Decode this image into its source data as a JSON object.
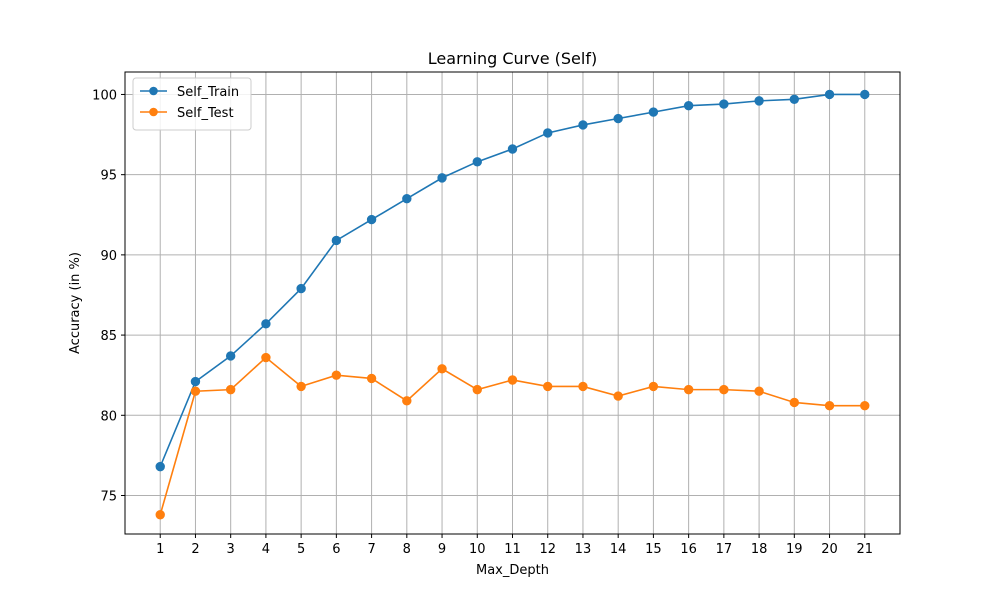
{
  "chart_data": {
    "type": "line",
    "title": "Learning Curve (Self)",
    "xlabel": "Max_Depth",
    "ylabel": "Accuracy (in %)",
    "x": [
      1,
      2,
      3,
      4,
      5,
      6,
      7,
      8,
      9,
      10,
      11,
      12,
      13,
      14,
      15,
      16,
      17,
      18,
      19,
      20,
      21
    ],
    "xticks": [
      "1",
      "2",
      "3",
      "4",
      "5",
      "6",
      "7",
      "8",
      "9",
      "10",
      "11",
      "12",
      "13",
      "14",
      "15",
      "16",
      "17",
      "18",
      "19",
      "20",
      "21"
    ],
    "yticks": [
      75,
      80,
      85,
      90,
      95,
      100
    ],
    "xlim": [
      0,
      22
    ],
    "ylim": [
      72.6,
      101.4
    ],
    "grid": true,
    "legend_position": "top-left",
    "series": [
      {
        "name": "Self_Train",
        "color": "#1f77b4",
        "marker": "circle",
        "values": [
          76.8,
          82.1,
          83.7,
          85.7,
          87.9,
          90.9,
          92.2,
          93.5,
          94.8,
          95.8,
          96.6,
          97.6,
          98.1,
          98.5,
          98.9,
          99.3,
          99.4,
          99.6,
          99.7,
          100.0,
          100.0
        ]
      },
      {
        "name": "Self_Test",
        "color": "#ff7f0e",
        "marker": "circle",
        "values": [
          73.8,
          81.5,
          81.6,
          83.6,
          81.8,
          82.5,
          82.3,
          80.9,
          82.9,
          81.6,
          82.2,
          81.8,
          81.8,
          81.2,
          81.8,
          81.6,
          81.6,
          81.5,
          80.8,
          80.6,
          80.6
        ]
      }
    ]
  }
}
